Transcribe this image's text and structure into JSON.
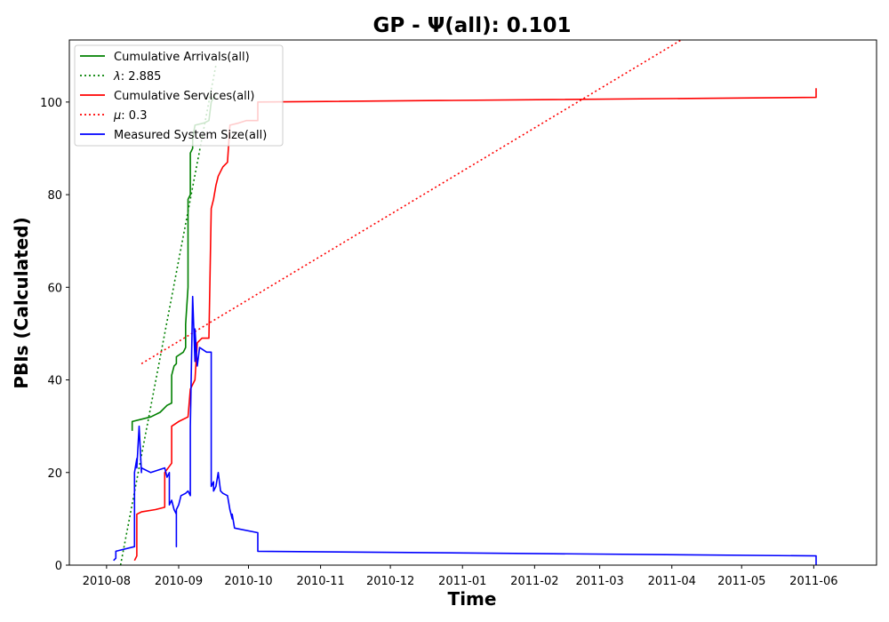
{
  "chart_data": {
    "type": "line",
    "title": "GP -  Ψ(all): 0.101",
    "xlabel": "Time",
    "ylabel": "PBIs (Calculated)",
    "x_axis_type": "date",
    "xlim": [
      "2010-07-16",
      "2011-06-28"
    ],
    "ylim": [
      0,
      113.4
    ],
    "x_ticks": [
      "2010-08-01",
      "2010-09-01",
      "2010-10-01",
      "2010-11-01",
      "2010-12-01",
      "2011-01-01",
      "2011-02-01",
      "2011-03-01",
      "2011-04-01",
      "2011-05-01",
      "2011-06-01"
    ],
    "x_tick_labels": [
      "2010-08",
      "2010-09",
      "2010-10",
      "2010-11",
      "2010-12",
      "2011-01",
      "2011-02",
      "2011-03",
      "2011-04",
      "2011-05",
      "2011-06"
    ],
    "y_ticks": [
      0,
      20,
      40,
      60,
      80,
      100
    ],
    "y_tick_labels": [
      "0",
      "20",
      "40",
      "60",
      "80",
      "100"
    ],
    "legend_position": "top-left",
    "grid": false,
    "series": [
      {
        "name": "Cumulative Arrivals(all)",
        "color": "#008000",
        "style": "solid",
        "points": [
          [
            "2010-08-12",
            29
          ],
          [
            "2010-08-12",
            31
          ],
          [
            "2010-08-16",
            31.5
          ],
          [
            "2010-08-20",
            32
          ],
          [
            "2010-08-24",
            33
          ],
          [
            "2010-08-26",
            34
          ],
          [
            "2010-08-27",
            34.5
          ],
          [
            "2010-08-29",
            35
          ],
          [
            "2010-08-29",
            41
          ],
          [
            "2010-08-30",
            43
          ],
          [
            "2010-08-31",
            43.5
          ],
          [
            "2010-08-31",
            45
          ],
          [
            "2010-09-03",
            46
          ],
          [
            "2010-09-04",
            47
          ],
          [
            "2010-09-04",
            52
          ],
          [
            "2010-09-05",
            60
          ],
          [
            "2010-09-05",
            70
          ],
          [
            "2010-09-05",
            79
          ],
          [
            "2010-09-06",
            80
          ],
          [
            "2010-09-06",
            89
          ],
          [
            "2010-09-07",
            90
          ],
          [
            "2010-09-07",
            92
          ],
          [
            "2010-09-08",
            95
          ],
          [
            "2010-09-12",
            95.5
          ],
          [
            "2010-09-14",
            96
          ],
          [
            "2010-09-15",
            100
          ],
          [
            "2010-09-16",
            101
          ],
          [
            "2010-09-17",
            102
          ]
        ]
      },
      {
        "name": "λ: 2.885",
        "label_math": "λ",
        "label_value": ": 2.885",
        "color": "#008000",
        "style": "dotted",
        "points": [
          [
            "2010-08-07",
            0
          ],
          [
            "2010-09-17",
            108
          ]
        ]
      },
      {
        "name": "Cumulative Services(all)",
        "color": "#ff0000",
        "style": "solid",
        "points": [
          [
            "2010-08-13",
            1
          ],
          [
            "2010-08-14",
            2
          ],
          [
            "2010-08-14",
            11
          ],
          [
            "2010-08-16",
            11.5
          ],
          [
            "2010-08-22",
            12
          ],
          [
            "2010-08-26",
            12.5
          ],
          [
            "2010-08-26",
            20
          ],
          [
            "2010-08-29",
            22
          ],
          [
            "2010-08-29",
            30
          ],
          [
            "2010-09-01",
            31
          ],
          [
            "2010-09-05",
            32
          ],
          [
            "2010-09-06",
            38
          ],
          [
            "2010-09-08",
            40
          ],
          [
            "2010-09-09",
            48
          ],
          [
            "2010-09-11",
            49
          ],
          [
            "2010-09-14",
            49
          ],
          [
            "2010-09-15",
            77
          ],
          [
            "2010-09-16",
            79
          ],
          [
            "2010-09-17",
            82
          ],
          [
            "2010-09-18",
            84
          ],
          [
            "2010-09-20",
            86
          ],
          [
            "2010-09-22",
            87
          ],
          [
            "2010-09-23",
            95
          ],
          [
            "2010-09-27",
            95.5
          ],
          [
            "2010-09-30",
            96
          ],
          [
            "2010-10-05",
            96
          ],
          [
            "2010-10-05",
            100
          ],
          [
            "2011-06-02",
            101
          ],
          [
            "2011-06-02",
            103
          ]
        ]
      },
      {
        "name": "μ: 0.3",
        "label_math": "μ",
        "label_value": ": 0.3",
        "color": "#ff0000",
        "style": "dotted",
        "points": [
          [
            "2010-08-16",
            43.5
          ],
          [
            "2011-04-05",
            113.4
          ]
        ]
      },
      {
        "name": "Measured System Size(all)",
        "color": "#0000ff",
        "style": "solid",
        "points": [
          [
            "2010-08-04",
            1
          ],
          [
            "2010-08-05",
            1.5
          ],
          [
            "2010-08-05",
            3
          ],
          [
            "2010-08-13",
            4
          ],
          [
            "2010-08-13",
            20
          ],
          [
            "2010-08-14",
            23
          ],
          [
            "2010-08-14",
            21
          ],
          [
            "2010-08-15",
            30
          ],
          [
            "2010-08-16",
            20
          ],
          [
            "2010-08-16",
            21
          ],
          [
            "2010-08-20",
            20
          ],
          [
            "2010-08-26",
            21
          ],
          [
            "2010-08-27",
            19
          ],
          [
            "2010-08-28",
            20
          ],
          [
            "2010-08-28",
            13
          ],
          [
            "2010-08-29",
            14
          ],
          [
            "2010-08-30",
            12
          ],
          [
            "2010-08-31",
            11
          ],
          [
            "2010-08-31",
            4
          ],
          [
            "2010-08-31",
            12
          ],
          [
            "2010-09-01",
            13
          ],
          [
            "2010-09-02",
            15
          ],
          [
            "2010-09-04",
            15.5
          ],
          [
            "2010-09-05",
            16
          ],
          [
            "2010-09-06",
            15
          ],
          [
            "2010-09-06",
            30
          ],
          [
            "2010-09-07",
            58
          ],
          [
            "2010-09-08",
            44
          ],
          [
            "2010-09-08",
            51
          ],
          [
            "2010-09-09",
            43
          ],
          [
            "2010-09-10",
            47
          ],
          [
            "2010-09-13",
            46
          ],
          [
            "2010-09-15",
            46
          ],
          [
            "2010-09-15",
            17
          ],
          [
            "2010-09-16",
            18
          ],
          [
            "2010-09-16",
            16
          ],
          [
            "2010-09-17",
            17
          ],
          [
            "2010-09-18",
            20
          ],
          [
            "2010-09-19",
            16
          ],
          [
            "2010-09-20",
            15.5
          ],
          [
            "2010-09-22",
            15
          ],
          [
            "2010-09-23",
            12
          ],
          [
            "2010-09-24",
            10
          ],
          [
            "2010-09-24",
            11
          ],
          [
            "2010-09-25",
            8
          ],
          [
            "2010-10-05",
            7
          ],
          [
            "2010-10-05",
            3
          ],
          [
            "2011-06-02",
            2
          ],
          [
            "2011-06-02",
            0
          ]
        ]
      }
    ]
  }
}
